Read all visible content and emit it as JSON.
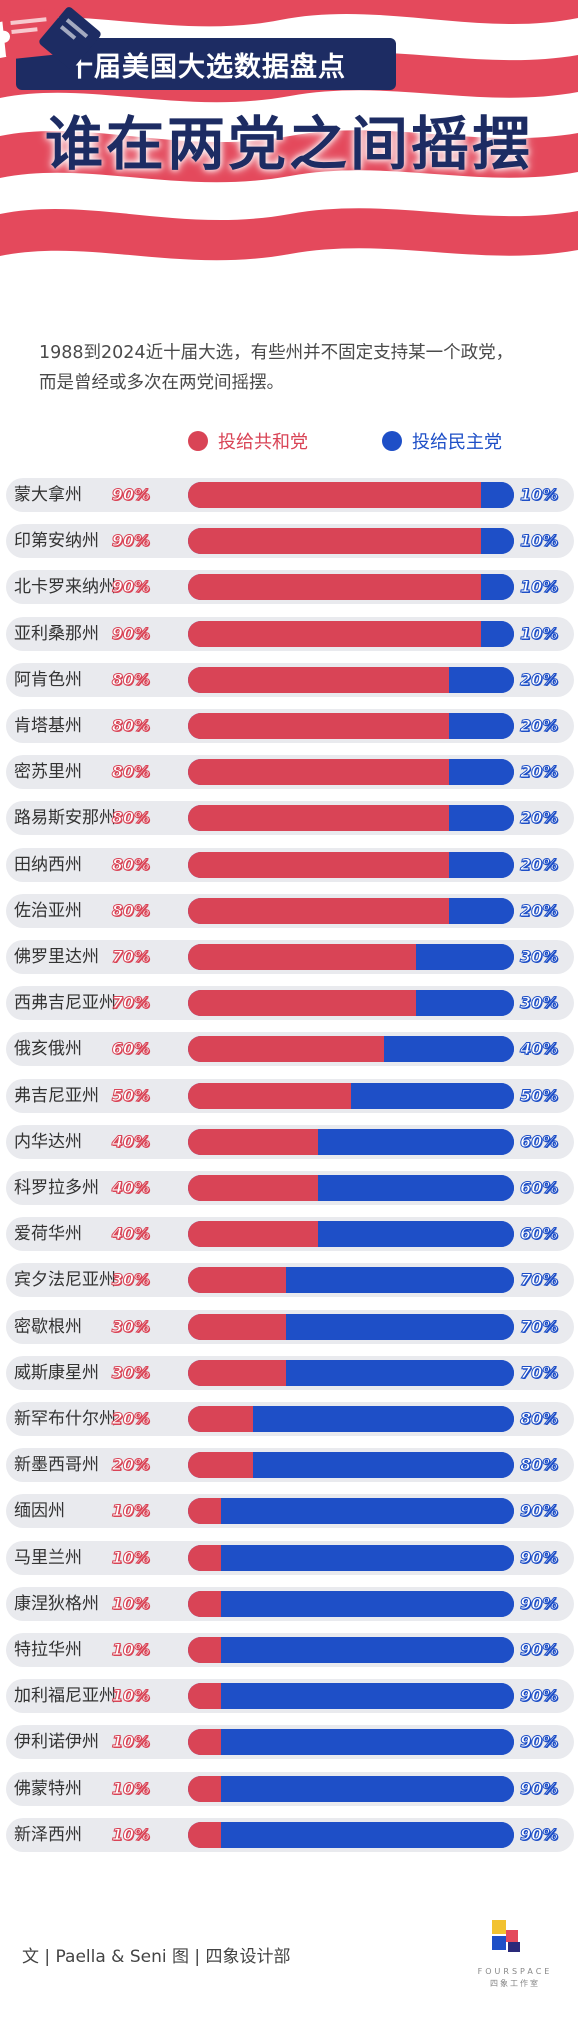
{
  "header": {
    "tag_title": "十届美国大选数据盘点",
    "headline": "谁在两党之间摇摆"
  },
  "intro": {
    "line1": "1988到2024近十届大选，有些州并不固定支持某一个政党，",
    "line2": "而是曾经或多次在两党间摇摆。"
  },
  "colors": {
    "republican": "#d94456",
    "democrat": "#1e4fc7",
    "navy": "#1d2c63"
  },
  "footer": {
    "credit": "文 | Paella & Seni    图 | 四象设计部",
    "brand_name": "FOURSPACE",
    "brand_sub": "四象工作室"
  },
  "chart_data": {
    "type": "bar",
    "stacked": true,
    "orientation": "horizontal",
    "legend_position": "top",
    "categories": [
      "蒙大拿州",
      "印第安纳州",
      "北卡罗来纳州",
      "亚利桑那州",
      "阿肯色州",
      "肯塔基州",
      "密苏里州",
      "路易斯安那州",
      "田纳西州",
      "佐治亚州",
      "佛罗里达州",
      "西弗吉尼亚州",
      "俄亥俄州",
      "弗吉尼亚州",
      "内华达州",
      "科罗拉多州",
      "爱荷华州",
      "宾夕法尼亚州",
      "密歇根州",
      "威斯康星州",
      "新罕布什尔州",
      "新墨西哥州",
      "缅因州",
      "马里兰州",
      "康涅狄格州",
      "特拉华州",
      "加利福尼亚州",
      "伊利诺伊州",
      "佛蒙特州",
      "新泽西州"
    ],
    "series": [
      {
        "name": "投给共和党",
        "color": "#d94456",
        "values": [
          90,
          90,
          90,
          90,
          80,
          80,
          80,
          80,
          80,
          80,
          70,
          70,
          60,
          50,
          40,
          40,
          40,
          30,
          30,
          30,
          20,
          20,
          10,
          10,
          10,
          10,
          10,
          10,
          10,
          10
        ]
      },
      {
        "name": "投给民主党",
        "color": "#1e4fc7",
        "values": [
          10,
          10,
          10,
          10,
          20,
          20,
          20,
          20,
          20,
          20,
          30,
          30,
          40,
          50,
          60,
          60,
          60,
          70,
          70,
          70,
          80,
          80,
          90,
          90,
          90,
          90,
          90,
          90,
          90,
          90
        ]
      }
    ],
    "unit": "%",
    "xlim": [
      0,
      100
    ]
  }
}
